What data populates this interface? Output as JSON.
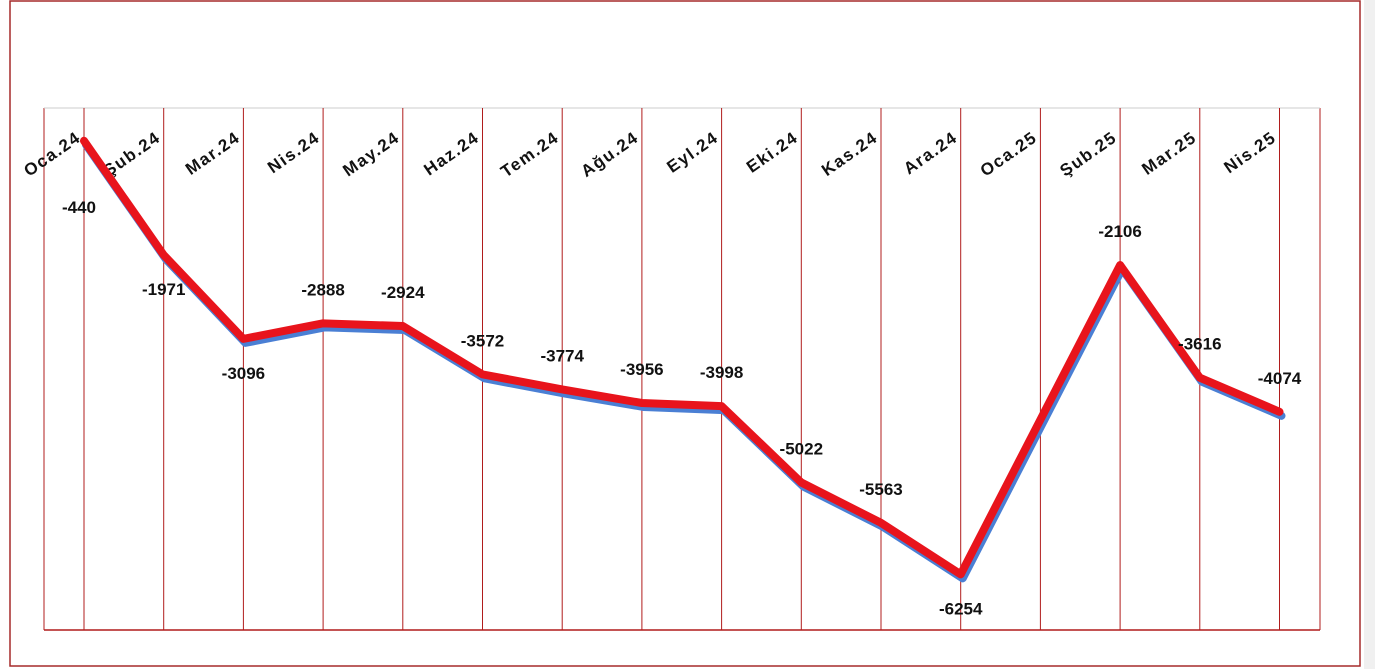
{
  "chart_data": {
    "type": "line",
    "categories": [
      "Oca.24",
      "Şub.24",
      "Mar.24",
      "Nis.24",
      "May.24",
      "Haz.24",
      "Tem.24",
      "Ağu.24",
      "Eyl.24",
      "Eki.24",
      "Kas.24",
      "Ara.24",
      "Oca.25",
      "Şub.25",
      "Mar.25",
      "Nis.25"
    ],
    "series": [
      {
        "color": "#e8141c",
        "values": [
          -440,
          -1971,
          -3096,
          -2888,
          -2924,
          -3572,
          -3774,
          -3956,
          -3998,
          -5022,
          -5563,
          -6254,
          null,
          -2106,
          -3616,
          -4074
        ]
      }
    ],
    "ylim": [
      -7000,
      0
    ],
    "span_gaps": true,
    "shadow_color": "#4a7fd4",
    "grid_color": "#b01c1c"
  }
}
